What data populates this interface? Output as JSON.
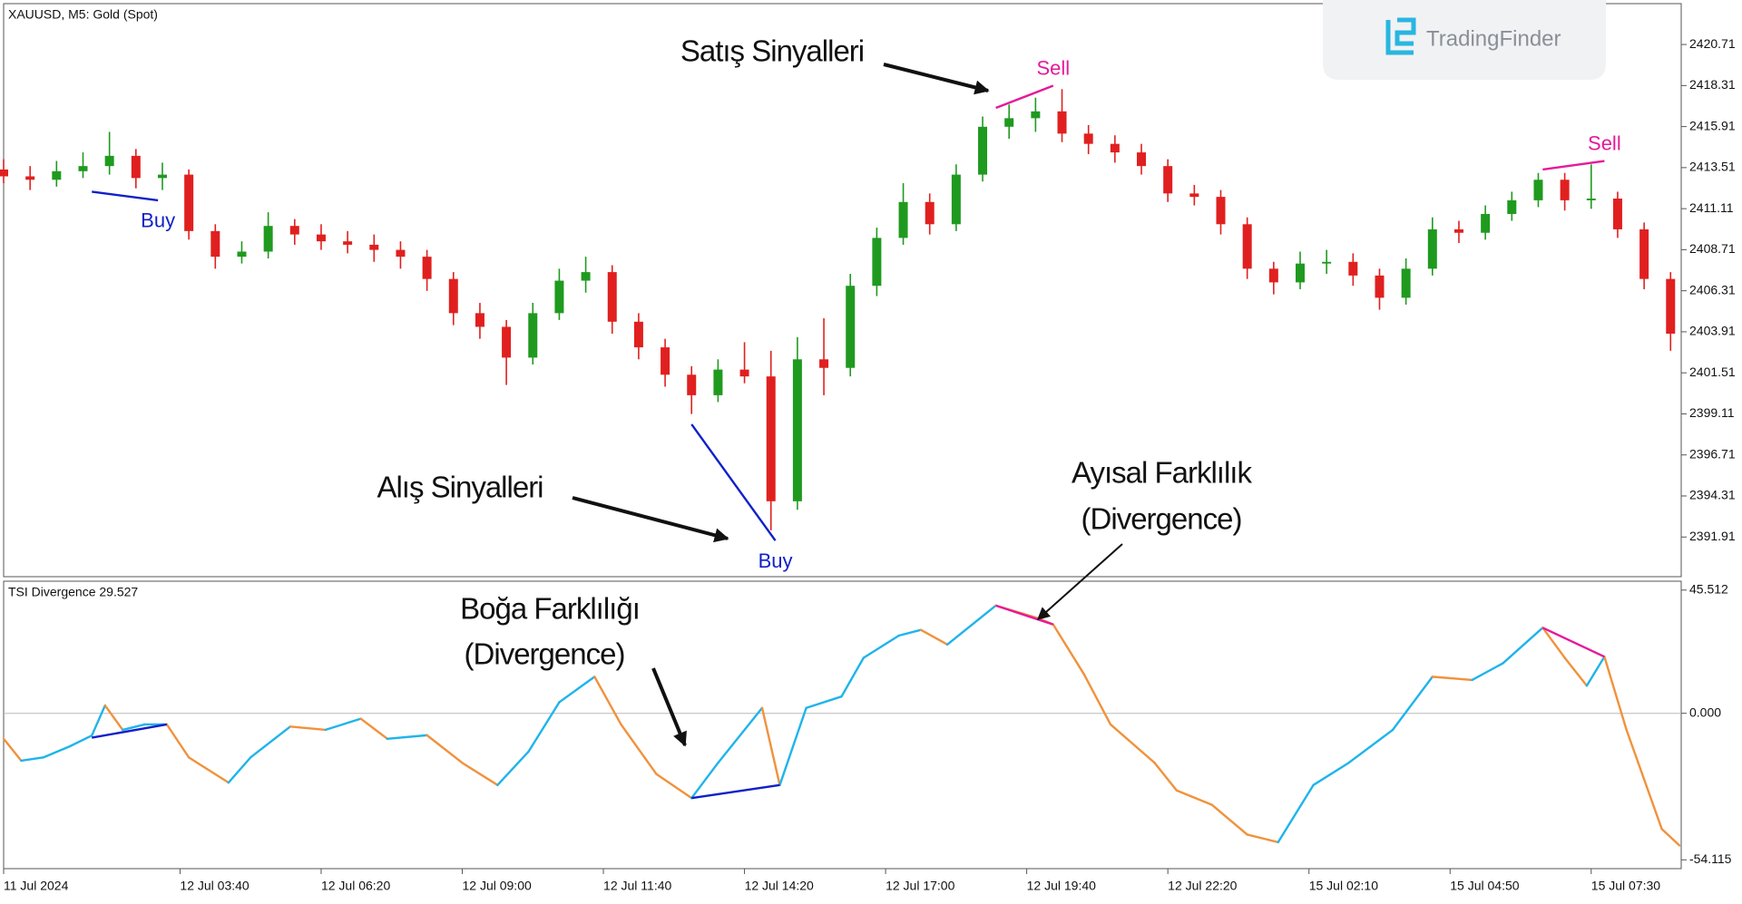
{
  "brand": "TradingFinder",
  "annotations": [
    "Satış Sinyalleri",
    "Alış Sinyalleri",
    "Ayısal Farklılık",
    "(Divergence)",
    "Boğa Farklılığı",
    "(Divergence)"
  ],
  "chart_data": [
    {
      "type": "candlestick",
      "title": "XAUUSD, M5:  Gold (Spot)",
      "up_color": "#1f9a1f",
      "down_color": "#e0201f",
      "xlim": [
        0,
        380
      ],
      "ylim": [
        2389.59,
        2423.1
      ],
      "yticks": [
        2420.71,
        2418.31,
        2415.91,
        2413.51,
        2411.11,
        2408.71,
        2406.31,
        2403.91,
        2401.51,
        2399.11,
        2396.71,
        2394.31,
        2391.91
      ],
      "x": [
        0,
        6,
        12,
        18,
        24,
        30,
        36,
        42,
        48,
        54,
        60,
        66,
        72,
        78,
        84,
        90,
        96,
        102,
        108,
        114,
        120,
        126,
        132,
        138,
        144,
        150,
        156,
        162,
        168,
        174,
        180,
        186,
        192,
        198,
        204,
        210,
        216,
        222,
        228,
        234,
        240,
        246,
        252,
        258,
        264,
        270,
        276,
        282,
        288,
        294,
        300,
        306,
        312,
        318,
        324,
        330,
        336,
        342,
        348,
        354,
        360,
        366,
        372,
        378
      ],
      "open": [
        2413.4,
        2413.0,
        2412.8,
        2413.3,
        2413.6,
        2414.2,
        2412.9,
        2413.1,
        2409.8,
        2408.3,
        2408.6,
        2410.1,
        2409.6,
        2409.2,
        2409.0,
        2408.7,
        2408.3,
        2407.0,
        2405.0,
        2404.2,
        2402.4,
        2405.0,
        2406.9,
        2407.4,
        2404.5,
        2403.0,
        2401.4,
        2400.2,
        2401.7,
        2401.3,
        2394.0,
        2402.3,
        2401.8,
        2406.6,
        2409.4,
        2411.5,
        2410.2,
        2413.1,
        2415.9,
        2416.4,
        2416.8,
        2415.5,
        2414.9,
        2414.4,
        2413.6,
        2412.0,
        2411.8,
        2410.2,
        2407.6,
        2406.8,
        2407.9,
        2408.0,
        2407.2,
        2405.9,
        2407.6,
        2409.9,
        2409.7,
        2410.8,
        2411.6,
        2412.8,
        2411.6,
        2411.7,
        2409.9,
        2407.0
      ],
      "high": [
        2414.0,
        2413.6,
        2413.9,
        2414.4,
        2415.6,
        2414.6,
        2413.8,
        2413.4,
        2410.2,
        2409.2,
        2410.9,
        2410.5,
        2410.2,
        2409.8,
        2409.6,
        2409.2,
        2408.7,
        2407.4,
        2405.6,
        2404.6,
        2405.6,
        2407.6,
        2408.3,
        2407.8,
        2405.0,
        2403.5,
        2401.9,
        2402.3,
        2403.3,
        2402.8,
        2403.6,
        2404.7,
        2407.3,
        2410.0,
        2412.6,
        2412.0,
        2413.7,
        2416.5,
        2417.2,
        2417.6,
        2418.1,
        2416.0,
        2415.4,
        2414.9,
        2414.0,
        2412.5,
        2412.2,
        2410.6,
        2408.0,
        2408.6,
        2408.7,
        2408.5,
        2407.6,
        2408.2,
        2410.6,
        2410.4,
        2411.3,
        2412.1,
        2413.2,
        2413.2,
        2413.7,
        2412.1,
        2410.3,
        2407.4
      ],
      "low": [
        2412.6,
        2412.2,
        2412.4,
        2412.9,
        2413.1,
        2412.3,
        2412.2,
        2409.3,
        2407.6,
        2407.9,
        2408.2,
        2409.0,
        2408.7,
        2408.5,
        2408.0,
        2407.6,
        2406.3,
        2404.3,
        2403.5,
        2400.8,
        2402.0,
        2404.6,
        2406.2,
        2403.8,
        2402.3,
        2400.7,
        2399.1,
        2399.8,
        2400.9,
        2392.3,
        2393.5,
        2400.2,
        2401.3,
        2406.0,
        2409.0,
        2409.6,
        2409.8,
        2412.7,
        2415.2,
        2415.6,
        2415.0,
        2414.3,
        2413.8,
        2413.1,
        2411.5,
        2411.3,
        2409.6,
        2407.0,
        2406.1,
        2406.4,
        2407.3,
        2406.6,
        2405.2,
        2405.5,
        2407.2,
        2409.1,
        2409.3,
        2410.4,
        2411.2,
        2411.0,
        2411.1,
        2409.4,
        2406.4,
        2402.8
      ],
      "close": [
        2413.0,
        2412.8,
        2413.3,
        2413.6,
        2414.2,
        2412.9,
        2413.1,
        2409.8,
        2408.3,
        2408.6,
        2410.1,
        2409.6,
        2409.2,
        2409.0,
        2408.7,
        2408.3,
        2407.0,
        2405.0,
        2404.2,
        2402.4,
        2405.0,
        2406.9,
        2407.4,
        2404.5,
        2403.0,
        2401.4,
        2400.2,
        2401.7,
        2401.3,
        2394.0,
        2402.3,
        2401.8,
        2406.6,
        2409.4,
        2411.5,
        2410.2,
        2413.1,
        2415.9,
        2416.4,
        2416.8,
        2415.5,
        2414.9,
        2414.4,
        2413.6,
        2412.0,
        2411.8,
        2410.2,
        2407.6,
        2406.8,
        2407.9,
        2408.0,
        2407.2,
        2405.9,
        2407.6,
        2409.9,
        2409.7,
        2410.8,
        2411.6,
        2412.8,
        2411.6,
        2411.7,
        2409.9,
        2407.0,
        2403.8
      ],
      "signals": [
        {
          "label": "Buy",
          "color": "#1020c8",
          "x": [
            20,
            35
          ],
          "y": [
            2412.1,
            2411.6
          ]
        },
        {
          "label": "Buy",
          "color": "#1020c8",
          "x": [
            156,
            175
          ],
          "y": [
            2398.5,
            2391.7
          ]
        },
        {
          "label": "Sell",
          "color": "#e5199a",
          "x": [
            225,
            238
          ],
          "y": [
            2417.0,
            2418.3
          ]
        },
        {
          "label": "Sell",
          "color": "#e5199a",
          "x": [
            349,
            363
          ],
          "y": [
            2413.4,
            2413.9
          ]
        }
      ]
    },
    {
      "type": "line",
      "title": "TSI Divergence 29.527",
      "rise_color": "#1fb4ea",
      "fall_color": "#f0923c",
      "level": 0,
      "level_color": "#b8b8b8",
      "xlim": [
        0,
        380
      ],
      "ylim": [
        -57.37,
        48.79
      ],
      "yticks": [
        45.512,
        {
          "value": 0,
          "label": "0.000"
        },
        -54.115
      ],
      "xticks": [
        {
          "value": 0,
          "label": "11 Jul 2024"
        },
        {
          "value": 40,
          "label": "12 Jul 03:40"
        },
        {
          "value": 72,
          "label": "12 Jul 06:20"
        },
        {
          "value": 104,
          "label": "12 Jul 09:00"
        },
        {
          "value": 136,
          "label": "12 Jul 11:40"
        },
        {
          "value": 168,
          "label": "12 Jul 14:20"
        },
        {
          "value": 200,
          "label": "12 Jul 17:00"
        },
        {
          "value": 232,
          "label": "12 Jul 19:40"
        },
        {
          "value": 264,
          "label": "12 Jul 22:20"
        },
        {
          "value": 296,
          "label": "15 Jul 02:10"
        },
        {
          "value": 328,
          "label": "15 Jul 04:50"
        },
        {
          "value": 360,
          "label": "15 Jul 07:30"
        }
      ],
      "x": [
        0,
        4,
        9,
        15,
        20,
        23,
        27,
        32,
        37,
        42,
        51,
        56,
        65,
        73,
        81,
        87,
        96,
        104,
        112,
        119,
        126,
        134,
        140,
        148,
        156,
        162,
        172,
        176,
        182,
        190,
        195,
        203,
        208,
        214,
        225,
        235,
        238,
        245,
        251,
        261,
        266,
        274,
        282,
        289,
        297,
        305,
        315,
        324,
        333,
        340,
        349,
        354,
        359,
        363,
        368,
        376,
        380
      ],
      "values": [
        -9.4,
        -17.5,
        -16.3,
        -12.2,
        -8.2,
        2.9,
        -6.1,
        -4.1,
        -4.1,
        -16.3,
        -25.6,
        -16.3,
        -4.9,
        -6.1,
        -2.0,
        -9.4,
        -8.1,
        -18.3,
        -26.5,
        -14.2,
        4.1,
        13.5,
        -4.1,
        -22.4,
        -31.3,
        -18.3,
        2.0,
        -26.5,
        2.0,
        6.2,
        20.5,
        28.7,
        30.8,
        25.4,
        39.8,
        34.9,
        32.8,
        14.4,
        -4.1,
        -18.3,
        -28.5,
        -33.8,
        -44.8,
        -47.6,
        -26.5,
        -18.3,
        -6.1,
        13.5,
        12.3,
        18.5,
        31.6,
        20.5,
        10.2,
        20.9,
        -6.1,
        -42.7,
        -48.8
      ],
      "signals": [
        {
          "color": "#1020c8",
          "x": [
            20,
            37
          ],
          "y": [
            -9.0,
            -4.1
          ]
        },
        {
          "color": "#1020c8",
          "x": [
            156,
            176
          ],
          "y": [
            -31.3,
            -26.5
          ]
        },
        {
          "color": "#e5199a",
          "x": [
            225,
            238
          ],
          "y": [
            39.8,
            32.8
          ]
        },
        {
          "color": "#e5199a",
          "x": [
            349,
            363
          ],
          "y": [
            31.6,
            20.9
          ]
        }
      ]
    }
  ]
}
